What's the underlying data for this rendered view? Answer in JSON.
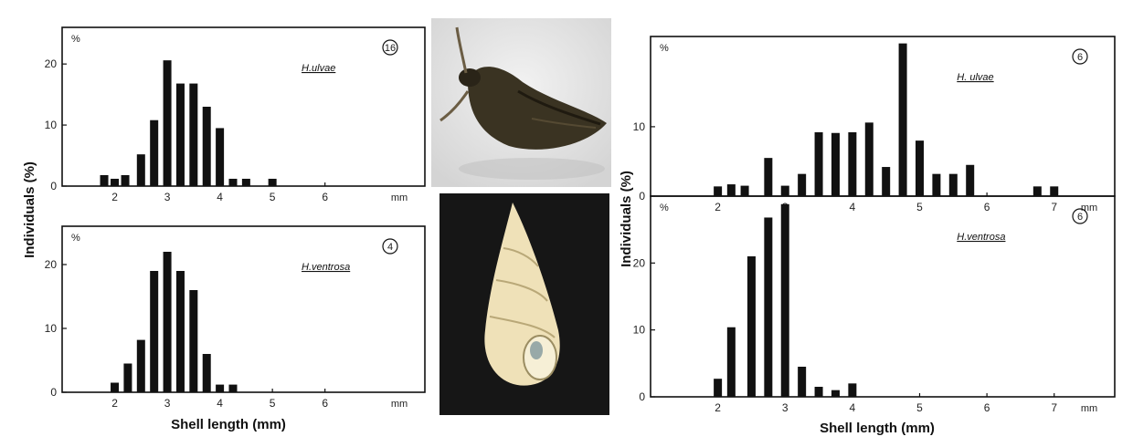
{
  "figure": {
    "shared_ylabel": "Individuals (%)",
    "shared_xlabel": "Shell length (mm)",
    "unit": "mm",
    "percent_sign": "%"
  },
  "photos": {
    "top": {
      "icon": "snail-live-photo",
      "bg": "#e7e7e7"
    },
    "bottom": {
      "icon": "snail-shell-photo",
      "bg": "#161616"
    }
  },
  "chart_data": [
    {
      "type": "bar",
      "species": "H.ulvae",
      "badge": "16",
      "x": [
        1.8,
        2.0,
        2.2,
        2.5,
        2.75,
        3.0,
        3.25,
        3.5,
        3.75,
        4.0,
        4.25,
        4.5,
        5.0
      ],
      "values": [
        1.8,
        1.2,
        1.8,
        5.2,
        10.8,
        20.6,
        16.8,
        16.8,
        13.0,
        9.5,
        1.2,
        1.2,
        1.2
      ],
      "xticks": [
        2,
        3,
        4,
        5,
        6
      ],
      "yticks": [
        0,
        10,
        20
      ],
      "xlim": [
        1,
        7.9
      ],
      "ylim": [
        0,
        26
      ],
      "grid": false
    },
    {
      "type": "bar",
      "species": "H.ventrosa",
      "badge": "4",
      "x": [
        2.0,
        2.25,
        2.5,
        2.75,
        3.0,
        3.25,
        3.5,
        3.75,
        4.0,
        4.25
      ],
      "values": [
        1.5,
        4.5,
        8.2,
        19.0,
        22.0,
        19.0,
        16.0,
        6.0,
        1.2,
        1.2
      ],
      "xticks": [
        2,
        3,
        4,
        5,
        6
      ],
      "yticks": [
        0,
        10,
        20
      ],
      "xlim": [
        1,
        7.9
      ],
      "ylim": [
        0,
        26
      ],
      "grid": false
    },
    {
      "type": "bar",
      "species": "H. ulvae",
      "badge": "6",
      "x": [
        2.0,
        2.2,
        2.4,
        2.75,
        3.0,
        3.25,
        3.5,
        3.75,
        4.0,
        4.25,
        4.5,
        4.75,
        5.0,
        5.25,
        5.5,
        5.75,
        6.0,
        6.75,
        7.0
      ],
      "values": [
        1.4,
        1.7,
        1.5,
        5.5,
        1.5,
        3.2,
        9.2,
        9.1,
        9.2,
        10.6,
        4.2,
        22.0,
        8.0,
        3.2,
        3.2,
        4.5,
        0,
        1.4,
        1.4
      ],
      "xticks": [
        2,
        3,
        4,
        5,
        6,
        7
      ],
      "yticks": [
        0,
        10
      ],
      "xlim": [
        1,
        7.9
      ],
      "ylim": [
        0,
        23
      ],
      "grid": false
    },
    {
      "type": "bar",
      "species": "H.ventrosa",
      "badge": "6",
      "x": [
        2.0,
        2.2,
        2.5,
        2.75,
        3.0,
        3.25,
        3.5,
        3.75,
        4.0
      ],
      "values": [
        2.7,
        10.4,
        21.0,
        26.8,
        28.8,
        4.5,
        1.5,
        1.0,
        2.0
      ],
      "xticks": [
        2,
        3,
        4,
        5,
        6,
        7
      ],
      "yticks": [
        0,
        10,
        20
      ],
      "xlim": [
        1,
        7.9
      ],
      "ylim": [
        0,
        30
      ],
      "grid": false
    }
  ]
}
